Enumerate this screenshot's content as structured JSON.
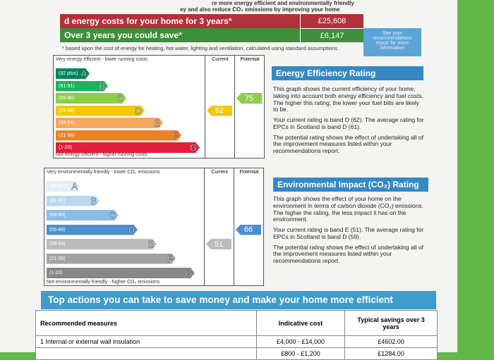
{
  "header": {
    "intro_lines": [
      "re more energy efficient and environmentally friendly",
      "ey and also reduce CO₂ emissions by improving your home"
    ],
    "costs_label": "d energy costs for your home for 3 years*",
    "total_cost": "£25,608",
    "save_label": "Over 3 years you could save*",
    "saving": "£6,147",
    "see_report": "See your recommendations report for more information",
    "footnote": "* based upon the cost of energy for heating, hot water, lighting and ventilation, calculated using standard assumptions"
  },
  "energy_rating": {
    "top_label": "Very energy efficient - lower running costs",
    "bottom_label": "Not energy efficient - higher running costs",
    "current_header": "Current",
    "potential_header": "Potential",
    "bands": [
      {
        "range": "(92 plus)",
        "letter": "A"
      },
      {
        "range": "(81-91)",
        "letter": "B"
      },
      {
        "range": "(69-80)",
        "letter": "C"
      },
      {
        "range": "(55-68)",
        "letter": "D"
      },
      {
        "range": "(39-54)",
        "letter": "E"
      },
      {
        "range": "(21-38)",
        "letter": "F"
      },
      {
        "range": "(1-20)",
        "letter": "G"
      }
    ],
    "colors": [
      "#00845a",
      "#1bb35b",
      "#8dce46",
      "#f2c800",
      "#f7a65f",
      "#ef8023",
      "#e31d3c"
    ],
    "current": 62,
    "potential": 75,
    "heading": "Energy Efficiency Rating",
    "paragraphs": [
      "This graph shows the current efficiency of your home, taking into account both energy efficiency and fuel costs. The higher this rating, the lower your fuel bills are likely to be.",
      "Your current rating is band D (62). The average rating for EPCs in Scotland is band D (61).",
      "The potential rating shows the effect of undertaking all of the improvement measures listed within your recommendations report."
    ]
  },
  "environmental_rating": {
    "top_label": "Very environmentally friendly - lower CO₂ emissions",
    "bottom_label": "Not environmentally friendly - higher CO₂ emissions",
    "current_header": "Current",
    "potential_header": "Potential",
    "bands": [
      {
        "range": "(92 plus)",
        "letter": "A"
      },
      {
        "range": "(81-91)",
        "letter": "B"
      },
      {
        "range": "(69-80)",
        "letter": "C"
      },
      {
        "range": "(55-68)",
        "letter": "D"
      },
      {
        "range": "(39-54)",
        "letter": "E"
      },
      {
        "range": "(21-38)",
        "letter": "F"
      },
      {
        "range": "(1-20)",
        "letter": "G"
      }
    ],
    "colors": [
      "#dfeef9",
      "#b7d7f0",
      "#8bbce6",
      "#4b8fcf",
      "#bcbcbc",
      "#a2a2a2",
      "#878787"
    ],
    "current": 51,
    "potential": 66,
    "heading": "Environmental Impact (CO₂) Rating",
    "paragraphs": [
      "This graph shows the effect of your home on the environment in terms of carbon dioxide (CO₂) emissions. The higher the rating, the less impact it has on the environment.",
      "Your current rating is band E (51). The average rating for EPCs in Scotland is band D (59).",
      "The potential rating shows the effect of undertaking all of the improvement measures listed within your recommendations report."
    ]
  },
  "actions": {
    "title": "Top actions you can take to save money and make your home more efficient",
    "columns": [
      "Recommended measures",
      "Indicative cost",
      "Typical savings over 3 years"
    ],
    "rows": [
      {
        "measure": "1 Internal or external wall insulation",
        "cost": "£4,000 - £14,000",
        "saving": "£4602.00"
      },
      {
        "cost": "£800 - £1,200",
        "saving": "£1284.00"
      }
    ]
  }
}
